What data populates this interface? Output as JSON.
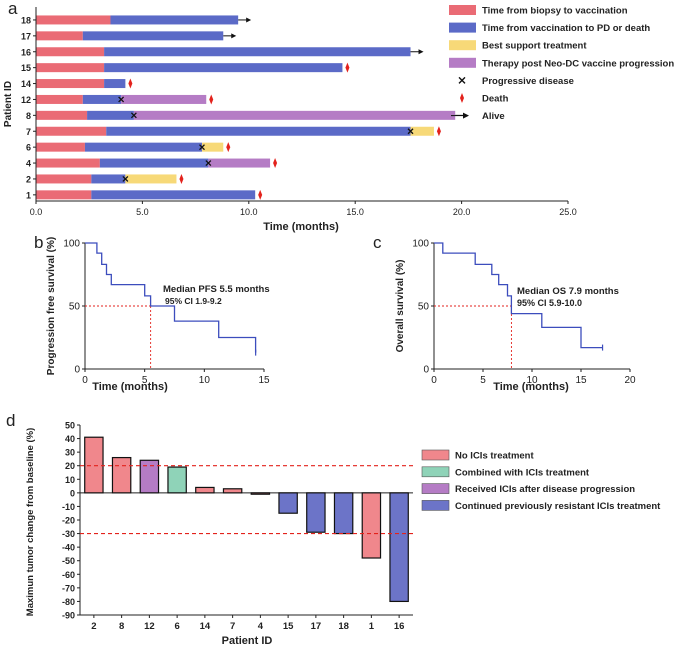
{
  "panels": {
    "a": {
      "letter": "a",
      "type": "swimmer",
      "ylabel": "Patient ID",
      "xlabel": "Time (months)",
      "xlim": [
        0,
        25
      ],
      "xticks": [
        "0.0",
        "5.0",
        "10.0",
        "15.0",
        "20.0",
        "25.0"
      ],
      "colors": {
        "biopsy": "#ea6b75",
        "vacc": "#5b6ac7",
        "bst": "#f7d978",
        "therapy": "#b57cc5",
        "death": "#e3221c",
        "marker": "#111111"
      },
      "legend": [
        {
          "key": "biopsy",
          "kind": "bar",
          "label": "Time from biopsy to vaccination"
        },
        {
          "key": "vacc",
          "kind": "bar",
          "label": "Time from vaccination to PD or death"
        },
        {
          "key": "bst",
          "kind": "bar",
          "label": "Best support treatment"
        },
        {
          "key": "therapy",
          "kind": "bar",
          "label": "Therapy post Neo-DC vaccine progression"
        },
        {
          "key": "pd",
          "kind": "x",
          "label": "Progressive disease"
        },
        {
          "key": "death",
          "kind": "death",
          "label": "Death"
        },
        {
          "key": "alive",
          "kind": "arrow",
          "label": "Alive"
        }
      ],
      "patients": [
        {
          "id": "18",
          "segments": [
            {
              "k": "biopsy",
              "s": 0,
              "e": 3.5
            },
            {
              "k": "vacc",
              "s": 3.5,
              "e": 9.5
            }
          ],
          "end": "alive"
        },
        {
          "id": "17",
          "segments": [
            {
              "k": "biopsy",
              "s": 0,
              "e": 2.2
            },
            {
              "k": "vacc",
              "s": 2.2,
              "e": 8.8
            }
          ],
          "end": "alive"
        },
        {
          "id": "16",
          "segments": [
            {
              "k": "biopsy",
              "s": 0,
              "e": 3.2
            },
            {
              "k": "vacc",
              "s": 3.2,
              "e": 17.6
            }
          ],
          "end": "alive"
        },
        {
          "id": "15",
          "segments": [
            {
              "k": "biopsy",
              "s": 0,
              "e": 3.2
            },
            {
              "k": "vacc",
              "s": 3.2,
              "e": 14.4
            }
          ],
          "end": "death"
        },
        {
          "id": "14",
          "segments": [
            {
              "k": "biopsy",
              "s": 0,
              "e": 3.2
            },
            {
              "k": "vacc",
              "s": 3.2,
              "e": 4.2
            }
          ],
          "end": "death"
        },
        {
          "id": "12",
          "segments": [
            {
              "k": "biopsy",
              "s": 0,
              "e": 2.2
            },
            {
              "k": "vacc",
              "s": 2.2,
              "e": 4.0
            },
            {
              "k": "therapy",
              "s": 4.0,
              "e": 8.0
            }
          ],
          "pd": 4.0,
          "end": "death"
        },
        {
          "id": "8",
          "segments": [
            {
              "k": "biopsy",
              "s": 0,
              "e": 2.4
            },
            {
              "k": "vacc",
              "s": 2.4,
              "e": 4.6
            },
            {
              "k": "therapy",
              "s": 4.6,
              "e": 19.7
            }
          ],
          "pd": 4.6,
          "end": "alive"
        },
        {
          "id": "7",
          "segments": [
            {
              "k": "biopsy",
              "s": 0,
              "e": 3.3
            },
            {
              "k": "vacc",
              "s": 3.3,
              "e": 17.6
            },
            {
              "k": "bst",
              "s": 17.6,
              "e": 18.7
            }
          ],
          "pd": 17.6,
          "end": "death"
        },
        {
          "id": "6",
          "segments": [
            {
              "k": "biopsy",
              "s": 0,
              "e": 2.3
            },
            {
              "k": "vacc",
              "s": 2.3,
              "e": 7.8
            },
            {
              "k": "bst",
              "s": 7.8,
              "e": 8.8
            }
          ],
          "pd": 7.8,
          "end": "death"
        },
        {
          "id": "4",
          "segments": [
            {
              "k": "biopsy",
              "s": 0,
              "e": 3.0
            },
            {
              "k": "vacc",
              "s": 3.0,
              "e": 8.1
            },
            {
              "k": "therapy",
              "s": 8.1,
              "e": 11.0
            }
          ],
          "pd": 8.1,
          "end": "death"
        },
        {
          "id": "2",
          "segments": [
            {
              "k": "biopsy",
              "s": 0,
              "e": 2.6
            },
            {
              "k": "vacc",
              "s": 2.6,
              "e": 4.2
            },
            {
              "k": "bst",
              "s": 4.2,
              "e": 6.6
            }
          ],
          "pd": 4.2,
          "end": "death"
        },
        {
          "id": "1",
          "segments": [
            {
              "k": "biopsy",
              "s": 0,
              "e": 2.6
            },
            {
              "k": "vacc",
              "s": 2.6,
              "e": 10.3
            }
          ],
          "end": "death"
        }
      ]
    },
    "b": {
      "letter": "b",
      "type": "km-step",
      "ylabel": "Progression free survival (%)",
      "xlabel": "Time (months)",
      "xlim": [
        0,
        15
      ],
      "ylim": [
        0,
        100
      ],
      "xticks": [
        0,
        5,
        10,
        15
      ],
      "yticks": [
        0,
        50,
        100
      ],
      "curve": [
        [
          0,
          100
        ],
        [
          1.0,
          100
        ],
        [
          1.0,
          92
        ],
        [
          1.4,
          92
        ],
        [
          1.4,
          83
        ],
        [
          1.8,
          83
        ],
        [
          1.8,
          75
        ],
        [
          2.2,
          75
        ],
        [
          2.2,
          67
        ],
        [
          5.0,
          67
        ],
        [
          5.0,
          58
        ],
        [
          5.5,
          58
        ],
        [
          5.5,
          50
        ],
        [
          7.5,
          50
        ],
        [
          7.5,
          38
        ],
        [
          11.2,
          38
        ],
        [
          11.2,
          25
        ],
        [
          14.3,
          25
        ],
        [
          14.3,
          13
        ]
      ],
      "median_x": 5.5,
      "line_color": "#3c4dbd",
      "ref_color": "#e3221c",
      "annotation_title": "Median PFS 5.5 months",
      "annotation_ci": "95% CI 1.9-9.2"
    },
    "c": {
      "letter": "c",
      "type": "km-step",
      "ylabel": "Overall survival (%)",
      "xlabel": "Time (months)",
      "xlim": [
        0,
        20
      ],
      "ylim": [
        0,
        100
      ],
      "xticks": [
        0,
        5,
        10,
        15,
        20
      ],
      "yticks": [
        0,
        50,
        100
      ],
      "curve": [
        [
          0,
          100
        ],
        [
          0.9,
          100
        ],
        [
          0.9,
          92
        ],
        [
          4.2,
          92
        ],
        [
          4.2,
          83
        ],
        [
          5.9,
          83
        ],
        [
          5.9,
          75
        ],
        [
          6.6,
          75
        ],
        [
          6.6,
          67
        ],
        [
          7.5,
          67
        ],
        [
          7.5,
          58
        ],
        [
          7.9,
          58
        ],
        [
          7.9,
          44
        ],
        [
          11.0,
          44
        ],
        [
          11.0,
          33
        ],
        [
          15.0,
          33
        ],
        [
          15.0,
          17
        ],
        [
          17.2,
          17
        ]
      ],
      "median_x": 7.9,
      "line_color": "#3c4dbd",
      "ref_color": "#e3221c",
      "annotation_title": "Median OS 7.9 months",
      "annotation_ci": "95% CI 5.9-10.0"
    },
    "d": {
      "letter": "d",
      "type": "waterfall",
      "ylabel": "Maximun tumor change from baseline (%)",
      "xlabel": "Patient ID",
      "ylim": [
        -90,
        50
      ],
      "yticks": [
        50,
        40,
        30,
        20,
        10,
        0,
        -10,
        -20,
        -30,
        -40,
        -50,
        -60,
        -70,
        -80,
        -90
      ],
      "ref_lines": [
        20,
        -30
      ],
      "colors": {
        "no_ici": "#f0878c",
        "combined": "#8fd3b8",
        "after": "#b57cc5",
        "resistant": "#6c74c8"
      },
      "legend": [
        {
          "key": "no_ici",
          "label": "No ICIs treatment"
        },
        {
          "key": "combined",
          "label": "Combined with ICIs treatment"
        },
        {
          "key": "after",
          "label": "Received ICIs after disease progression"
        },
        {
          "key": "resistant",
          "label": "Continued previously resistant ICIs treatment"
        }
      ],
      "bars": [
        {
          "id": "2",
          "value": 41,
          "group": "no_ici"
        },
        {
          "id": "8",
          "value": 26,
          "group": "no_ici"
        },
        {
          "id": "12",
          "value": 24,
          "group": "after"
        },
        {
          "id": "6",
          "value": 19,
          "group": "combined"
        },
        {
          "id": "14",
          "value": 4,
          "group": "no_ici"
        },
        {
          "id": "7",
          "value": 3,
          "group": "no_ici"
        },
        {
          "id": "4",
          "value": -1,
          "group": "no_ici"
        },
        {
          "id": "15",
          "value": -15,
          "group": "resistant"
        },
        {
          "id": "17",
          "value": -29,
          "group": "resistant"
        },
        {
          "id": "18",
          "value": -30,
          "group": "resistant"
        },
        {
          "id": "1",
          "value": -48,
          "group": "no_ici"
        },
        {
          "id": "16",
          "value": -80,
          "group": "resistant"
        }
      ]
    }
  },
  "chart_data": [
    {
      "panel": "a",
      "type": "bar",
      "orientation": "horizontal",
      "title": "",
      "xlabel": "Time (months)",
      "ylabel": "Patient ID",
      "xlim": [
        0,
        25
      ],
      "categories": [
        "18",
        "17",
        "16",
        "15",
        "14",
        "12",
        "8",
        "7",
        "6",
        "4",
        "2",
        "1"
      ],
      "series": [
        {
          "name": "Time from biopsy to vaccination",
          "values": [
            3.5,
            2.2,
            3.2,
            3.2,
            3.2,
            2.2,
            2.4,
            3.3,
            2.3,
            3.0,
            2.6,
            2.6
          ]
        },
        {
          "name": "Time from vaccination to PD or death",
          "values": [
            6.0,
            6.6,
            14.4,
            11.2,
            1.0,
            1.8,
            2.2,
            14.3,
            5.5,
            5.1,
            1.6,
            7.7
          ]
        },
        {
          "name": "Best support treatment",
          "values": [
            0,
            0,
            0,
            0,
            0,
            0,
            0,
            1.1,
            1.0,
            0,
            2.4,
            0
          ]
        },
        {
          "name": "Therapy post Neo-DC vaccine progression",
          "values": [
            0,
            0,
            0,
            0,
            0,
            4.0,
            15.1,
            0,
            0,
            2.9,
            0,
            0
          ]
        }
      ]
    },
    {
      "panel": "b",
      "type": "line",
      "title": "",
      "xlabel": "Time (months)",
      "ylabel": "Progression free survival (%)",
      "xlim": [
        0,
        15
      ],
      "ylim": [
        0,
        100
      ],
      "series": [
        {
          "name": "PFS",
          "x": [
            0,
            1.0,
            1.4,
            1.8,
            2.2,
            5.0,
            5.5,
            7.5,
            11.2,
            14.3
          ],
          "y": [
            100,
            92,
            83,
            75,
            67,
            58,
            50,
            38,
            25,
            13
          ]
        }
      ],
      "annotations": [
        "Median PFS 5.5 months",
        "95% CI 1.9-9.2"
      ]
    },
    {
      "panel": "c",
      "type": "line",
      "title": "",
      "xlabel": "Time (months)",
      "ylabel": "Overall survival (%)",
      "xlim": [
        0,
        20
      ],
      "ylim": [
        0,
        100
      ],
      "series": [
        {
          "name": "OS",
          "x": [
            0,
            0.9,
            4.2,
            5.9,
            6.6,
            7.5,
            7.9,
            11.0,
            15.0,
            17.2
          ],
          "y": [
            100,
            92,
            83,
            75,
            67,
            58,
            44,
            33,
            17,
            17
          ]
        }
      ],
      "annotations": [
        "Median OS 7.9 months",
        "95% CI 5.9-10.0"
      ]
    },
    {
      "panel": "d",
      "type": "bar",
      "title": "",
      "xlabel": "Patient ID",
      "ylabel": "Maximun tumor change from baseline (%)",
      "ylim": [
        -90,
        50
      ],
      "categories": [
        "2",
        "8",
        "12",
        "6",
        "14",
        "7",
        "4",
        "15",
        "17",
        "18",
        "1",
        "16"
      ],
      "values": [
        41,
        26,
        24,
        19,
        4,
        3,
        -1,
        -15,
        -29,
        -30,
        -48,
        -80
      ],
      "reference_lines": [
        20,
        -30
      ]
    }
  ]
}
